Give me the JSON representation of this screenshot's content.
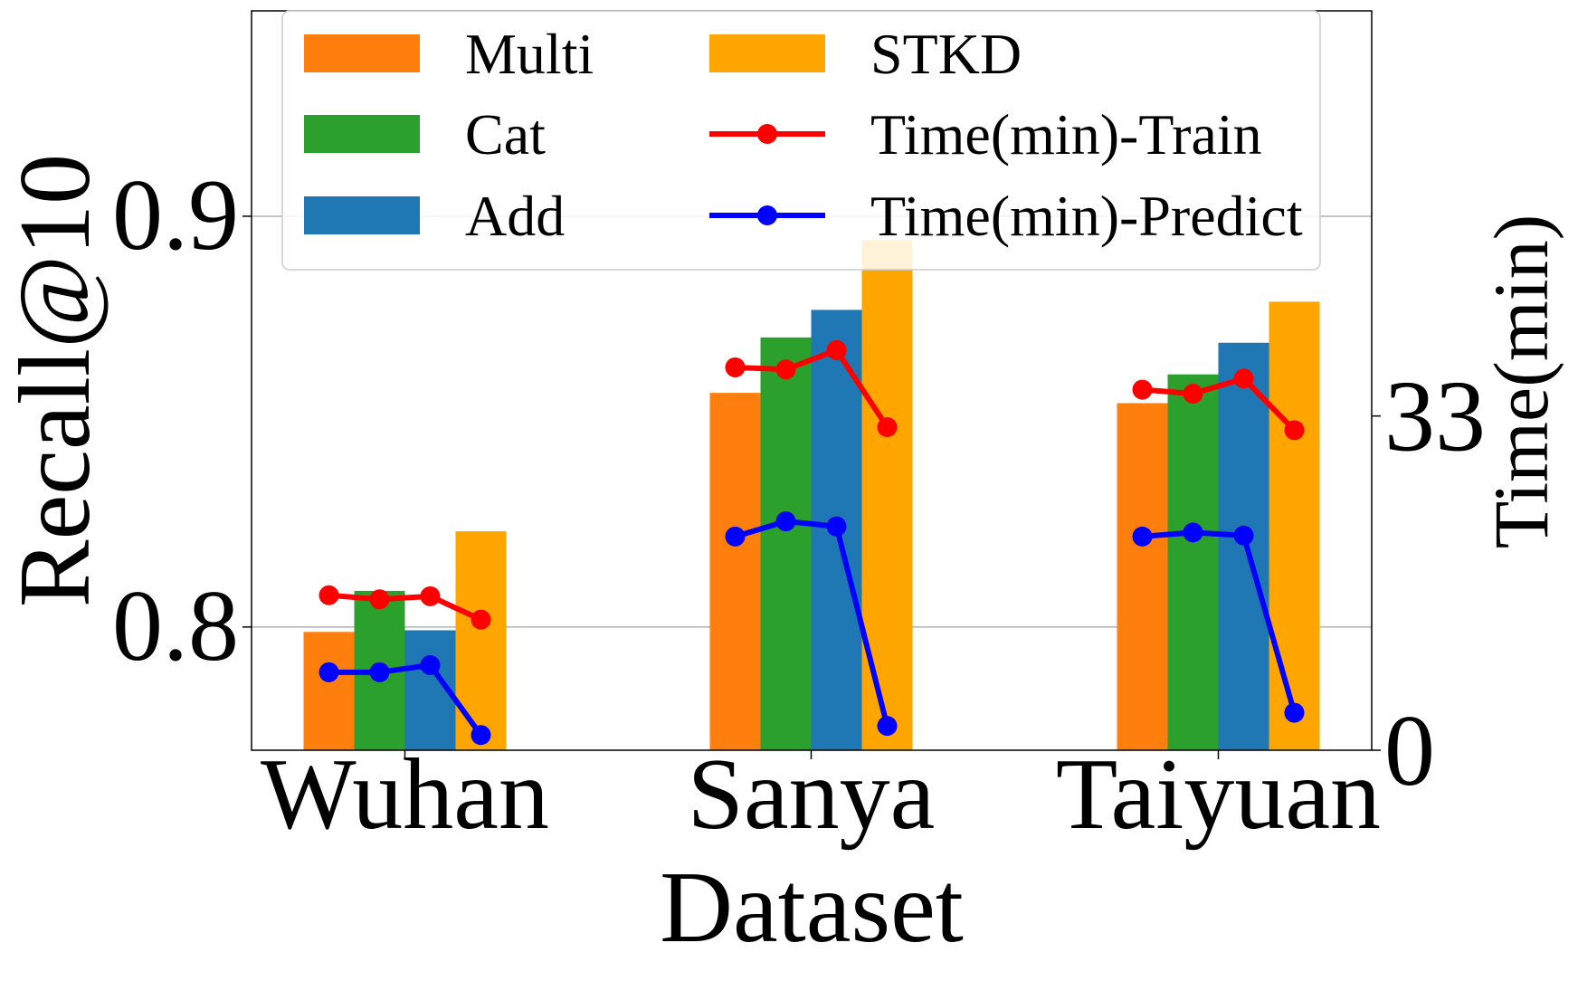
{
  "chart_data": {
    "type": "bar",
    "title": "",
    "xlabel": "Dataset",
    "ylabel": "Recall@10",
    "y2label": "Time(min)",
    "categories": [
      "Wuhan",
      "Sanya",
      "Taiyuan"
    ],
    "ylim": [
      0.77,
      0.95
    ],
    "yticks": [
      0.8,
      0.9
    ],
    "ytick_labels": [
      "0.8",
      "0.9"
    ],
    "y2lim": [
      0,
      73
    ],
    "y2ticks": [
      0,
      33
    ],
    "y2tick_labels": [
      "0",
      "33"
    ],
    "grid": true,
    "legend_position": "top",
    "bar_series": [
      {
        "name": "Multi",
        "color": "#ff7f0e",
        "values": [
          0.7988,
          0.857,
          0.8545
        ]
      },
      {
        "name": "Cat",
        "color": "#2ca02c",
        "values": [
          0.8088,
          0.8705,
          0.8615
        ]
      },
      {
        "name": "Add",
        "color": "#1f77b4",
        "values": [
          0.7992,
          0.8772,
          0.8692
        ]
      },
      {
        "name": "STKD",
        "color": "#ffa500",
        "values": [
          0.8233,
          0.8942,
          0.8792
        ]
      }
    ],
    "line_series": [
      {
        "name": "Time(min)-Train",
        "color": "#ff0000",
        "values": [
          [
            15.3,
            14.9,
            15.2,
            12.9
          ],
          [
            37.8,
            37.6,
            39.5,
            31.9
          ],
          [
            35.6,
            35.2,
            36.7,
            31.6
          ]
        ]
      },
      {
        "name": "Time(min)-Predict",
        "color": "#0000ff",
        "values": [
          [
            7.7,
            7.7,
            8.4,
            1.5
          ],
          [
            21.1,
            22.6,
            22.1,
            2.4
          ],
          [
            21.1,
            21.5,
            21.2,
            3.7
          ]
        ]
      }
    ]
  }
}
